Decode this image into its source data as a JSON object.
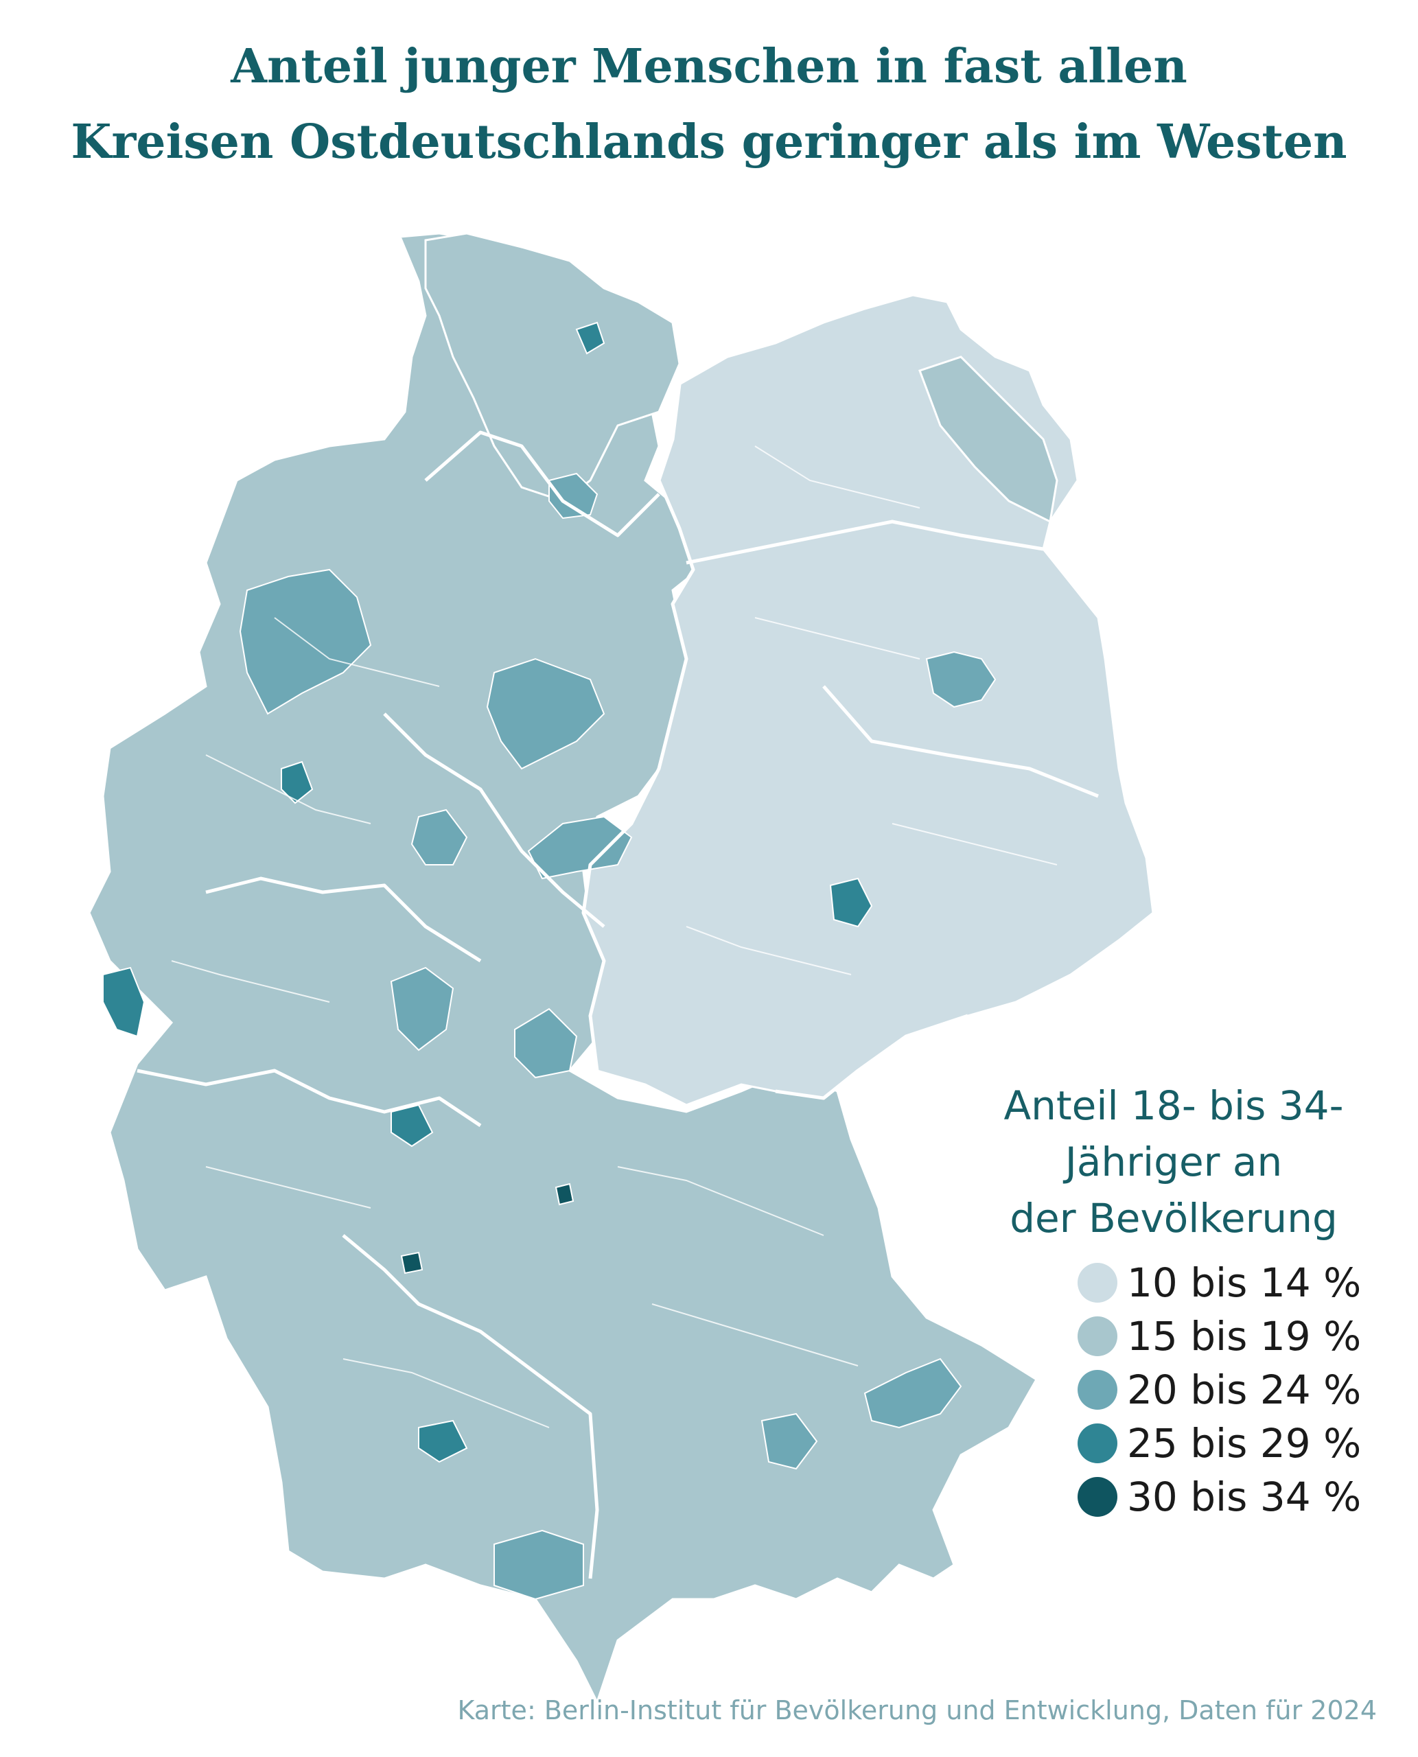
{
  "title": {
    "line1": "Anteil junger Menschen in fast allen",
    "line2": "Kreisen Ostdeutschlands geringer als im Westen"
  },
  "legend": {
    "title_line1": "Anteil 18- bis 34-",
    "title_line2": "Jähriger an",
    "title_line3": "der Bevölkerung",
    "items": [
      {
        "label": "10 bis 14 %",
        "color": "#cddde4"
      },
      {
        "label": "15 bis 19 %",
        "color": "#a8c6cd"
      },
      {
        "label": "20 bis 24 %",
        "color": "#6ea8b5"
      },
      {
        "label": "25 bis 29 %",
        "color": "#2f8594"
      },
      {
        "label": "30 bis 34 %",
        "color": "#0f5560"
      }
    ]
  },
  "source": "Karte: Berlin-Institut für Bevölkerung und Entwicklung, Daten für 2024",
  "colors": {
    "title": "#145f68",
    "class_10_14": "#cddde4",
    "class_15_19": "#a8c6cd",
    "class_20_24": "#6ea8b5",
    "class_25_29": "#2f8594",
    "class_30_34": "#0f5560"
  }
}
